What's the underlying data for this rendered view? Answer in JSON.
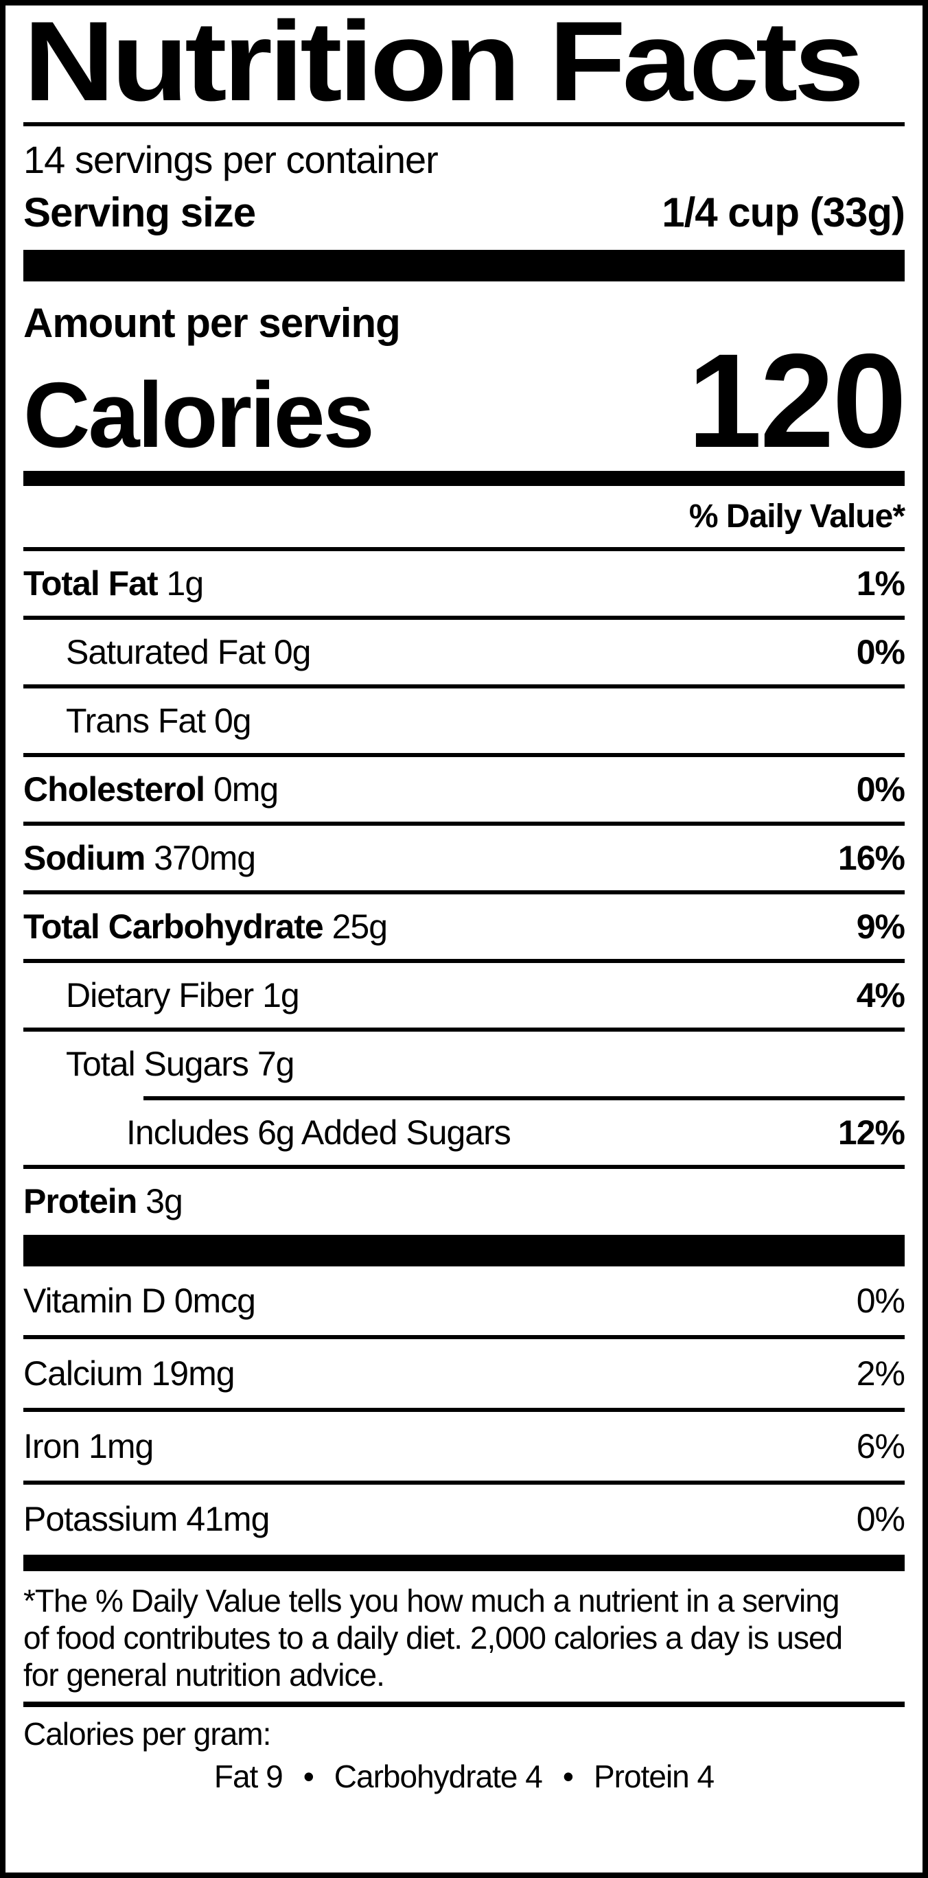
{
  "label": {
    "title": "Nutrition Facts",
    "servings_per_container": "14 servings per container",
    "serving_size_label": "Serving size",
    "serving_size_value": "1/4 cup (33g)",
    "amount_per_serving": "Amount per serving",
    "calories_label": "Calories",
    "calories_value": "120",
    "daily_value_header": "% Daily Value*",
    "nutrient_rows": [
      {
        "name": "Total Fat",
        "amount": "1g",
        "percent": "1%",
        "bold": true,
        "indent": 0
      },
      {
        "name": "Saturated Fat",
        "amount": "0g",
        "percent": "0%",
        "bold": false,
        "indent": 1
      },
      {
        "name": "Trans Fat",
        "amount": "0g",
        "percent": "",
        "bold": false,
        "indent": 1
      },
      {
        "name": "Cholesterol",
        "amount": "0mg",
        "percent": "0%",
        "bold": true,
        "indent": 0
      },
      {
        "name": "Sodium",
        "amount": "370mg",
        "percent": "16%",
        "bold": true,
        "indent": 0
      },
      {
        "name": "Total Carbohydrate",
        "amount": "25g",
        "percent": "9%",
        "bold": true,
        "indent": 0
      },
      {
        "name": "Dietary Fiber",
        "amount": "1g",
        "percent": "4%",
        "bold": false,
        "indent": 1
      },
      {
        "name": "Total Sugars",
        "amount": "7g",
        "percent": "",
        "bold": false,
        "indent": 1
      },
      {
        "name": "Includes 6g Added Sugars",
        "amount": "",
        "percent": "12%",
        "bold": false,
        "indent": 2,
        "divider_indent": true
      },
      {
        "name": "Protein",
        "amount": "3g",
        "percent": "",
        "bold": true,
        "indent": 0
      }
    ],
    "vitamin_rows": [
      {
        "name": "Vitamin D",
        "amount": "0mcg",
        "percent": "0%"
      },
      {
        "name": "Calcium",
        "amount": "19mg",
        "percent": "2%"
      },
      {
        "name": "Iron",
        "amount": "1mg",
        "percent": "6%"
      },
      {
        "name": "Potassium",
        "amount": "41mg",
        "percent": "0%"
      }
    ],
    "footnote": "*The % Daily Value tells you how much a nutrient in a serving of food contributes to a daily diet. 2,000 calories a day is used for general nutrition advice.",
    "calories_per_gram_label": "Calories per gram:",
    "calories_per_gram_values": [
      "Fat 9",
      "Carbohydrate 4",
      "Protein 4"
    ],
    "bullet": "•",
    "colors": {
      "ink": "#000000",
      "paper": "#ffffff"
    }
  }
}
